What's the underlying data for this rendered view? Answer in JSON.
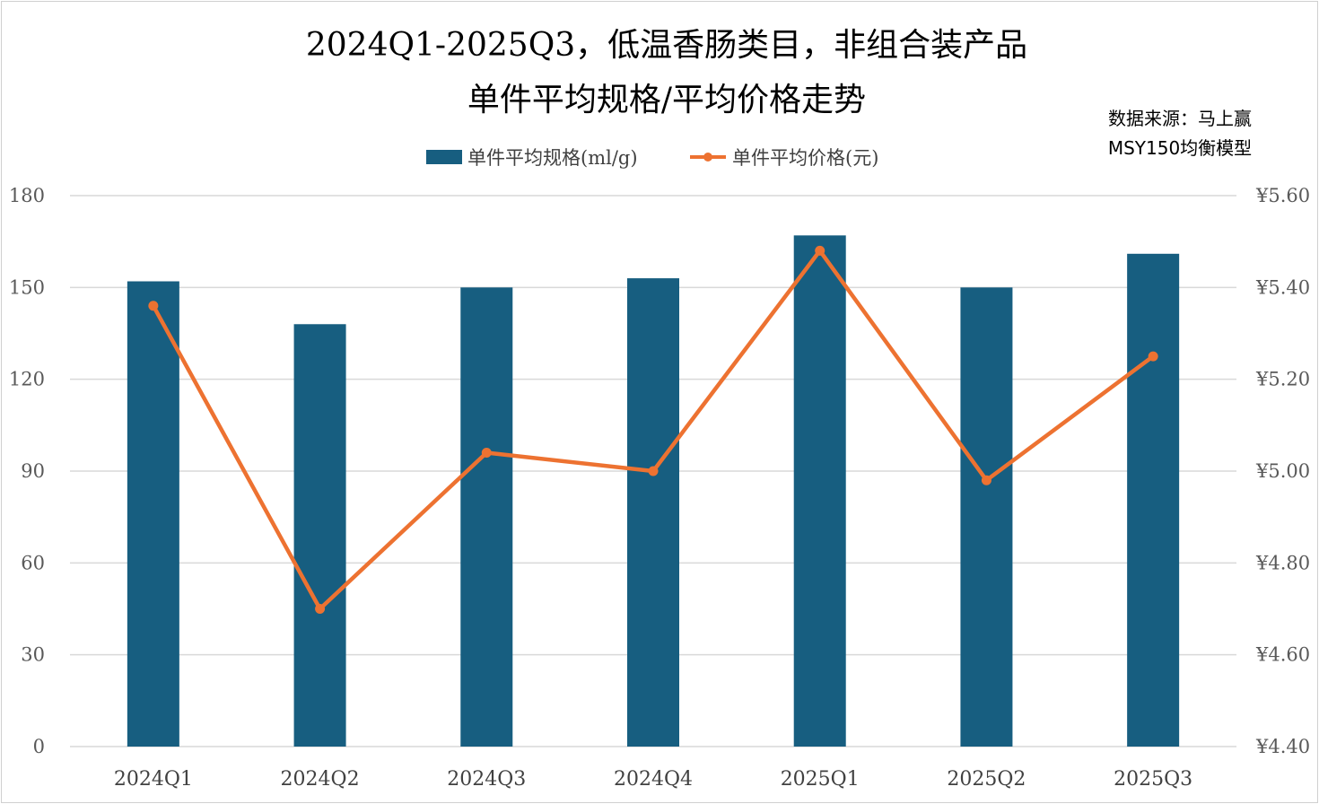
{
  "title": {
    "line1": "2024Q1-2025Q3，低温香肠类目，非组合装产品",
    "line2": "单件平均规格/平均价格走势"
  },
  "source": {
    "line1": "数据来源：马上赢",
    "line2": "MSY150均衡模型"
  },
  "legend": {
    "bar_label": "单件平均规格(ml/g)",
    "line_label": "单件平均价格(元)"
  },
  "colors": {
    "bar": "#175E80",
    "line": "#ED7231",
    "grid": "#D9D9D9"
  },
  "chart_data": {
    "type": "bar",
    "categories": [
      "2024Q1",
      "2024Q2",
      "2024Q3",
      "2024Q4",
      "2025Q1",
      "2025Q2",
      "2025Q3"
    ],
    "series": [
      {
        "name": "单件平均规格(ml/g)",
        "type": "bar",
        "axis": "left",
        "values": [
          152,
          138,
          150,
          153,
          167,
          150,
          161
        ]
      },
      {
        "name": "单件平均价格(元)",
        "type": "line",
        "axis": "right",
        "values": [
          5.36,
          4.7,
          5.04,
          5.0,
          5.48,
          4.98,
          5.25
        ]
      }
    ],
    "y_left": {
      "min": 0,
      "max": 180,
      "ticks": [
        0,
        30,
        60,
        90,
        120,
        150,
        180
      ],
      "tick_labels": [
        "0",
        "30",
        "60",
        "90",
        "120",
        "150",
        "180"
      ]
    },
    "y_right": {
      "min": 4.4,
      "max": 5.6,
      "ticks": [
        4.4,
        4.6,
        4.8,
        5.0,
        5.2,
        5.4,
        5.6
      ],
      "tick_labels": [
        "¥4.40",
        "¥4.60",
        "¥4.80",
        "¥5.00",
        "¥5.20",
        "¥5.40",
        "¥5.60"
      ]
    },
    "grid": true,
    "legend_position": "top"
  }
}
